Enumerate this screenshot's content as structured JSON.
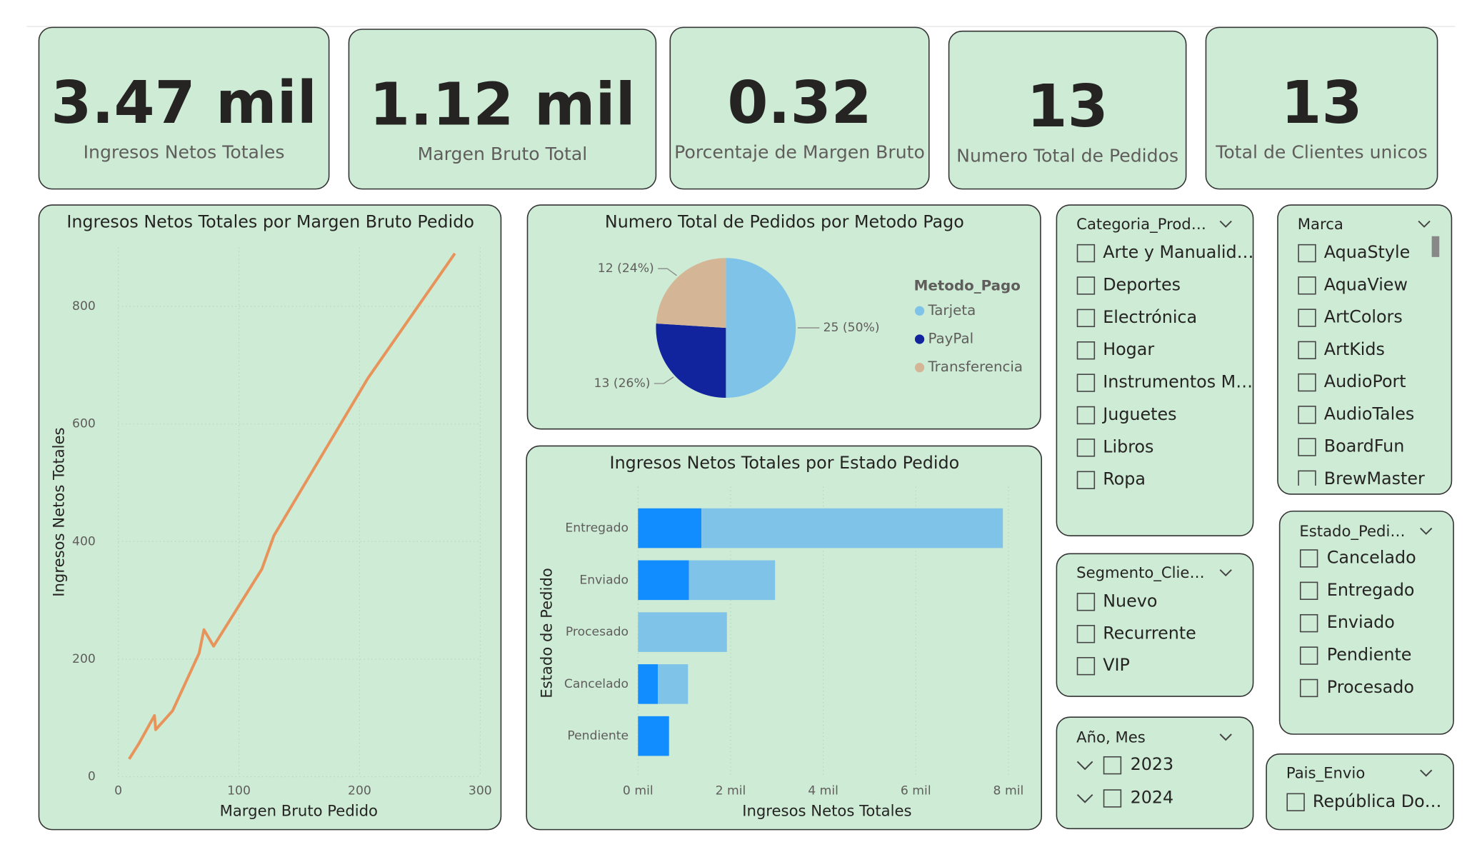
{
  "cards": [
    {
      "value": "3.47 mil",
      "label": "Ingresos Netos Totales"
    },
    {
      "value": "1.12 mil",
      "label": "Margen Bruto Total"
    },
    {
      "value": "0.32",
      "label": "Porcentaje de Margen Bruto"
    },
    {
      "value": "13",
      "label": "Numero Total de Pedidos"
    },
    {
      "value": "13",
      "label": "Total de Clientes unicos"
    }
  ],
  "charts": [
    {
      "type": "line",
      "title": "Ingresos Netos Totales por Margen Bruto Pedido",
      "x_label": "Margen Bruto Pedido",
      "y_label": "Ingresos Netos Totales",
      "x": [
        9,
        17,
        30,
        31,
        45,
        67,
        71,
        79,
        119,
        129,
        207,
        279
      ],
      "values": [
        30,
        56,
        104,
        80,
        112,
        210,
        250,
        222,
        353,
        410,
        678,
        890
      ],
      "color": "#e8935a",
      "xlim": [
        0,
        300
      ],
      "ylim": [
        0,
        900
      ],
      "xticks": [
        0,
        100,
        200,
        300
      ],
      "yticks": [
        0,
        200,
        400,
        600,
        800
      ],
      "grid": true
    },
    {
      "type": "pie",
      "title": "Numero Total de Pedidos por Metodo Pago",
      "legend_title": "Metodo_Pago",
      "categories": [
        "Tarjeta",
        "PayPal",
        "Transferencia"
      ],
      "values": [
        25,
        13,
        12
      ],
      "value_labels": [
        "25 (50%)",
        "13 (26%)",
        "12 (24%)"
      ],
      "colors": [
        "#7fc4e8",
        "#12239e",
        "#d4b697"
      ]
    },
    {
      "type": "bar",
      "orientation": "horizontal",
      "stacked": true,
      "title": "Ingresos Netos Totales por Estado Pedido",
      "x_label": "Ingresos Netos Totales",
      "y_label": "Estado de Pedido",
      "categories": [
        "Entregado",
        "Enviado",
        "Procesado",
        "Cancelado",
        "Pendiente"
      ],
      "series": [
        {
          "color": "#118dff",
          "values": [
            1370,
            1100,
            0,
            430,
            670
          ]
        },
        {
          "color": "#7fc4e8",
          "values": [
            6510,
            1860,
            1920,
            650,
            0
          ]
        }
      ],
      "xlim": [
        0,
        8000
      ],
      "xticks": [
        {
          "value": 0,
          "label": "0 mil"
        },
        {
          "value": 2000,
          "label": "2 mil"
        },
        {
          "value": 4000,
          "label": "4 mil"
        },
        {
          "value": 6000,
          "label": "6 mil"
        },
        {
          "value": 8000,
          "label": "8 mil"
        }
      ],
      "grid": true
    }
  ],
  "slicers": [
    {
      "title": "Categoria_Prod…",
      "items": [
        "Arte y Manualid…",
        "Deportes",
        "Electrónica",
        "Hogar",
        "Instrumentos M…",
        "Juguetes",
        "Libros",
        "Ropa"
      ]
    },
    {
      "title": "Marca",
      "items": [
        "AquaStyle",
        "AquaView",
        "ArtColors",
        "ArtKids",
        "AudioPort",
        "AudioTales",
        "BoardFun",
        "BrewMaster"
      ]
    },
    {
      "title": "Segmento_Clie…",
      "items": [
        "Nuevo",
        "Recurrente",
        "VIP"
      ]
    },
    {
      "title": "Año, Mes",
      "items": [
        "2023",
        "2024"
      ]
    },
    {
      "title": "Estado_Pedi…",
      "items": [
        "Cancelado",
        "Entregado",
        "Enviado",
        "Pendiente",
        "Procesado"
      ]
    },
    {
      "title": "Pais_Envio",
      "items": [
        "República Do…"
      ]
    }
  ]
}
